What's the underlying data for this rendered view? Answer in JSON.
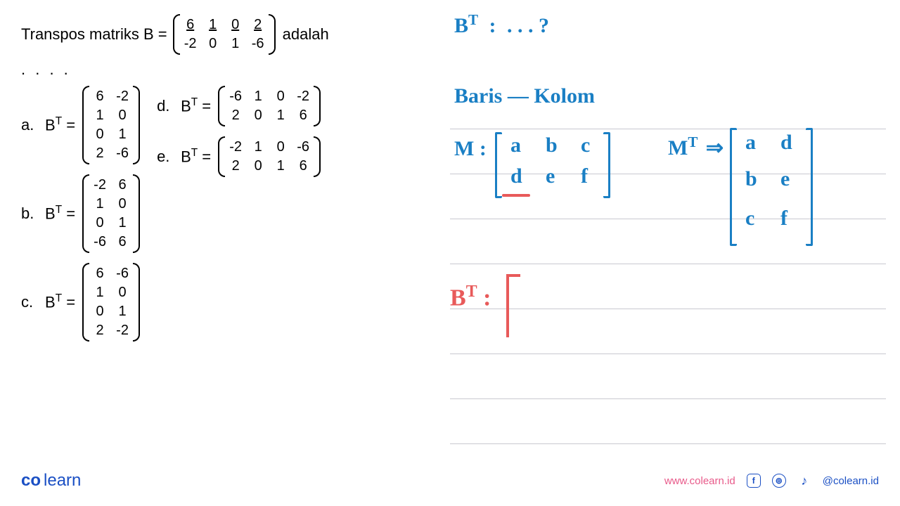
{
  "question": {
    "prefix": "Transpos matriks B =",
    "suffix": "adalah",
    "dots": ". . . .",
    "matrix": {
      "rows": 2,
      "cols": 4,
      "cells": [
        [
          "6",
          "1",
          "0",
          "2"
        ],
        [
          "-2",
          "0",
          "1",
          "-6"
        ]
      ],
      "underline_row": 0
    }
  },
  "options": [
    {
      "label": "a.",
      "bt": "B",
      "sup": "T",
      "eq": "=",
      "matrix": {
        "rows": 4,
        "cols": 2,
        "cells": [
          [
            "6",
            "-2"
          ],
          [
            "1",
            "0"
          ],
          [
            "0",
            "1"
          ],
          [
            "2",
            "-6"
          ]
        ]
      }
    },
    {
      "label": "b.",
      "bt": "B",
      "sup": "T",
      "eq": "=",
      "matrix": {
        "rows": 4,
        "cols": 2,
        "cells": [
          [
            "-2",
            "6"
          ],
          [
            "1",
            "0"
          ],
          [
            "0",
            "1"
          ],
          [
            "-6",
            "6"
          ]
        ]
      }
    },
    {
      "label": "c.",
      "bt": "B",
      "sup": "T",
      "eq": "=",
      "matrix": {
        "rows": 4,
        "cols": 2,
        "cells": [
          [
            "6",
            "-6"
          ],
          [
            "1",
            "0"
          ],
          [
            "0",
            "1"
          ],
          [
            "2",
            "-2"
          ]
        ]
      }
    },
    {
      "label": "d.",
      "bt": "B",
      "sup": "T",
      "eq": "=",
      "matrix": {
        "rows": 2,
        "cols": 4,
        "cells": [
          [
            "-6",
            "1",
            "0",
            "-2"
          ],
          [
            "2",
            "0",
            "1",
            "6"
          ]
        ]
      }
    },
    {
      "label": "e.",
      "bt": "B",
      "sup": "T",
      "eq": "=",
      "matrix": {
        "rows": 2,
        "cols": 4,
        "cells": [
          [
            "-2",
            "1",
            "0",
            "-6"
          ],
          [
            "2",
            "0",
            "1",
            "6"
          ]
        ]
      }
    }
  ],
  "notes": {
    "bt_question": "B",
    "bt_sup": "T",
    "bt_colon": ":",
    "bt_dots": ". . . ?",
    "line2": "Baris   —   Kolom",
    "m_label": "M :",
    "m_cells": [
      "a",
      "b",
      "c",
      "d",
      "e",
      "f"
    ],
    "mt_label": "M",
    "mt_sup": "T",
    "mt_arrow": "⇒",
    "mt_cells": [
      "a",
      "d",
      "b",
      "e",
      "c",
      "f"
    ],
    "bt2": "B",
    "bt2_sup": "T",
    "bt2_colon": ":",
    "colors": {
      "blue": "#1a7fc4",
      "red": "#e85a5a",
      "rule": "#c8c8d0"
    },
    "ruled_line_height": 64
  },
  "footer": {
    "logo_left": "co",
    "logo_right": "learn",
    "url": "www.colearn.id",
    "icons": [
      "f",
      "⊚",
      "♪"
    ],
    "handle": "@colearn.id"
  }
}
